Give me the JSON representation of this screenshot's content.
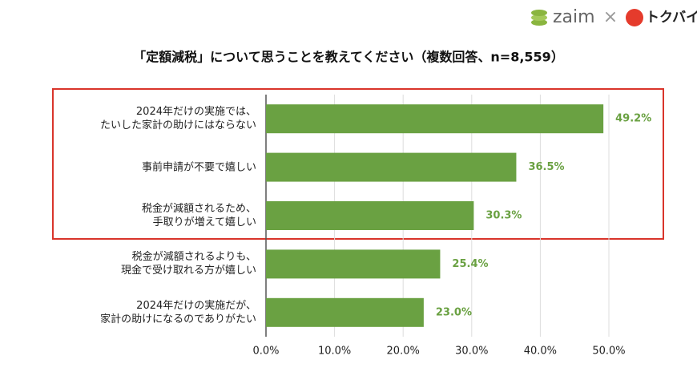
{
  "chart_data": {
    "type": "barh",
    "title": "「定額減税」について思うことを教えてください（複数回答、n=8,559）",
    "categories": [
      "2024年だけの実施では、\nたいした家計の助けにはならない",
      "事前申請が不要で嬉しい",
      "税金が減額されるため、\n手取りが増えて嬉しい",
      "税金が減額されるよりも、\n現金で受け取れる方が嬉しい",
      "2024年だけの実施だが、\n家計の助けになるのでありがたい"
    ],
    "values": [
      49.2,
      36.5,
      30.3,
      25.4,
      23.0
    ],
    "value_labels": [
      "49.2%",
      "36.5%",
      "30.3%",
      "25.4%",
      "23.0%"
    ],
    "color": "#6aa142",
    "xlim": [
      0,
      50
    ],
    "xticks": [
      {
        "value": 0,
        "label": "0.0%"
      },
      {
        "value": 10,
        "label": "10.0%"
      },
      {
        "value": 20,
        "label": "20.0%"
      },
      {
        "value": 30,
        "label": "30.0%"
      },
      {
        "value": 40,
        "label": "40.0%"
      },
      {
        "value": 50,
        "label": "50.0%"
      }
    ],
    "grid": true
  },
  "header_logos": {
    "zaim": "zaim",
    "separator": "×",
    "tokubai": "トクバイ"
  }
}
